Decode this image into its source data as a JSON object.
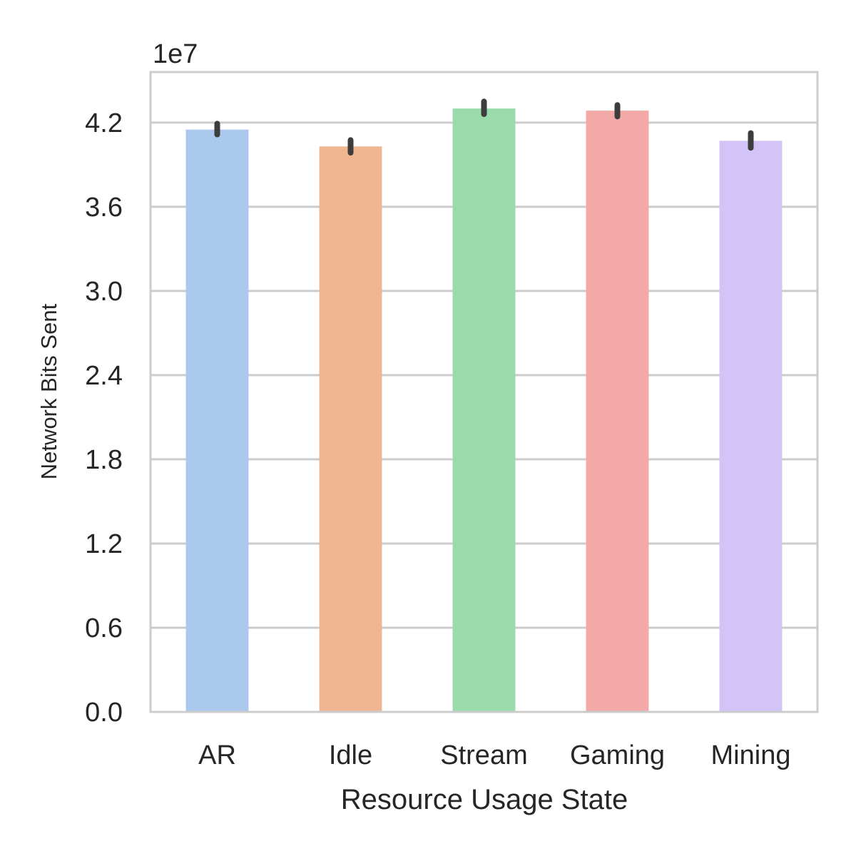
{
  "chart_data": {
    "type": "bar",
    "categories": [
      "AR",
      "Idle",
      "Stream",
      "Gaming",
      "Mining"
    ],
    "values": [
      41500000,
      40300000,
      43000000,
      42850000,
      40700000
    ],
    "error_low": [
      41150000,
      39850000,
      42600000,
      42430000,
      40200000
    ],
    "error_high": [
      41920000,
      40750000,
      43500000,
      43250000,
      41250000
    ],
    "colors": [
      "#abc9ec",
      "#f0b691",
      "#99dbab",
      "#f2a9a8",
      "#d2c4f6"
    ],
    "error_color": "#3d3d3d",
    "xlabel": "Resource Usage State",
    "ylabel": "Network Bits Sent",
    "offset_label": "1e7",
    "ylim": [
      0,
      45600000
    ],
    "yticks": [
      0,
      6000000,
      12000000,
      18000000,
      24000000,
      30000000,
      36000000,
      42000000
    ],
    "ytick_labels": [
      "0.0",
      "0.6",
      "1.2",
      "1.8",
      "2.4",
      "3.0",
      "3.6",
      "4.2"
    ],
    "grid": "horizontal"
  }
}
